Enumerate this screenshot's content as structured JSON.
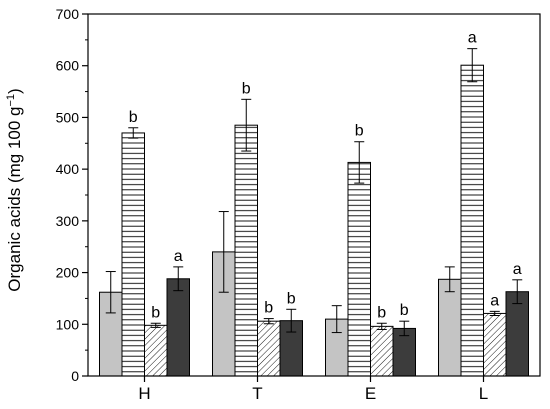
{
  "chart_data": {
    "type": "bar",
    "ylabel": "Organic acids (mg 100 g",
    "ylabel_sup": "−1",
    "ylabel_close": ")",
    "ylim": [
      0,
      700
    ],
    "yticks": [
      "0",
      "100",
      "200",
      "300",
      "400",
      "500",
      "600",
      "700"
    ],
    "categories": [
      "H",
      "T",
      "E",
      "L"
    ],
    "grid": false,
    "series": [
      {
        "fill": "light-gray",
        "color": "#c4c4c4",
        "values": [
          162,
          240,
          110,
          187
        ],
        "errors": [
          40,
          78,
          26,
          24
        ],
        "letters": [
          "",
          "",
          "",
          ""
        ]
      },
      {
        "fill": "horizontal-lines",
        "color": "#ffffff",
        "values": [
          470,
          485,
          413,
          601
        ],
        "errors": [
          10,
          50,
          40,
          32
        ],
        "letters": [
          "b",
          "b",
          "b",
          "a"
        ]
      },
      {
        "fill": "diagonal-hatch",
        "color": "#ffffff",
        "values": [
          98,
          106,
          96,
          121
        ],
        "errors": [
          4,
          5,
          6,
          4
        ],
        "letters": [
          "b",
          "b",
          "b",
          "a"
        ]
      },
      {
        "fill": "dark-gray",
        "color": "#3c3c3c",
        "values": [
          188,
          107,
          92,
          163
        ],
        "errors": [
          23,
          22,
          14,
          23
        ],
        "letters": [
          "a",
          "b",
          "b",
          "a"
        ]
      }
    ]
  }
}
